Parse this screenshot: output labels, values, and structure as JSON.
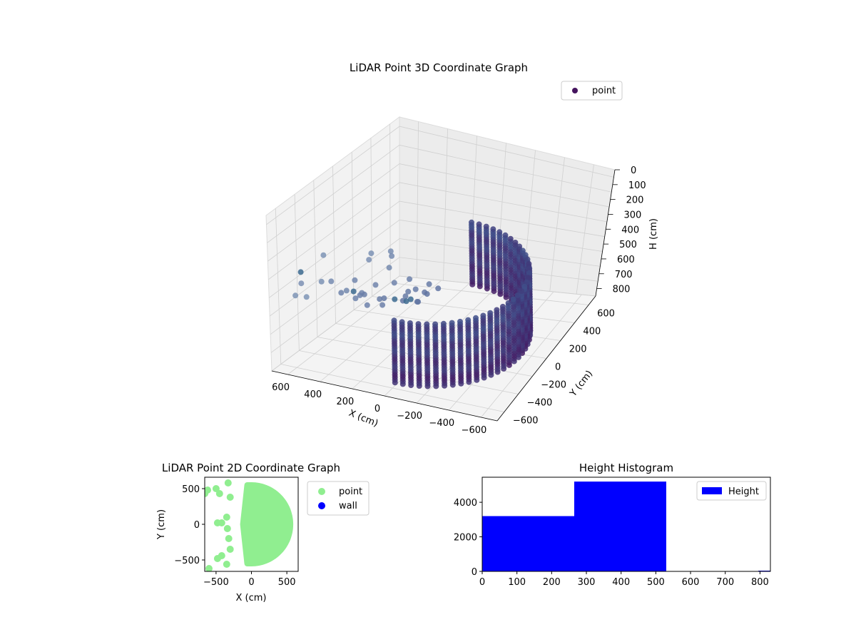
{
  "colors": {
    "point3d_dark": "#45145e",
    "point3d_mid": "#3f4f8a",
    "point3d_light": "#9bb3c9",
    "point2d": "#90ee90",
    "wall": "#0000ff",
    "hist": "#0000ff",
    "pane": "#f2f2f2",
    "grid": "#d0d0d0"
  },
  "chart_data": [
    {
      "type": "scatter",
      "projection": "3d",
      "title": "LiDAR Point 3D Coordinate Graph",
      "xlabel": "X (cm)",
      "ylabel": "Y (cm)",
      "zlabel": "H (cm)",
      "xlim": [
        -700,
        700
      ],
      "ylim": [
        -700,
        700
      ],
      "zlim": [
        0,
        850
      ],
      "z_inverted": true,
      "xticks": [
        "−600",
        "−400",
        "−200",
        "0",
        "200",
        "400",
        "600"
      ],
      "yticks": [
        "−600",
        "−400",
        "−200",
        "0",
        "200",
        "400",
        "600"
      ],
      "zticks": [
        "0",
        "100",
        "200",
        "300",
        "400",
        "500",
        "600",
        "700",
        "800"
      ],
      "legend": {
        "entries": [
          "point"
        ],
        "placement": "top-right"
      },
      "grid": true,
      "series": [
        {
          "name": "point",
          "shape": "half-cylinder wall",
          "radius": 550,
          "angle_range_deg": [
            -90,
            90
          ],
          "height_range": [
            0,
            530
          ],
          "scattered_points": [
            [
              -650,
              600,
              30
            ],
            [
              -620,
              500,
              60
            ],
            [
              -550,
              650,
              40
            ],
            [
              -500,
              550,
              90
            ],
            [
              -450,
              400,
              120
            ],
            [
              -700,
              -200,
              250
            ],
            [
              -680,
              -400,
              420
            ],
            [
              -620,
              -450,
              580
            ],
            [
              -600,
              -500,
              720
            ],
            [
              -650,
              -100,
              320
            ],
            [
              -680,
              0,
              460
            ],
            [
              -450,
              -200,
              380
            ],
            [
              -400,
              -100,
              300
            ],
            [
              -380,
              50,
              260
            ],
            [
              -350,
              -300,
              420
            ],
            [
              -300,
              -250,
              340
            ],
            [
              -250,
              -150,
              280
            ],
            [
              -200,
              100,
              220
            ],
            [
              -150,
              -50,
              310
            ],
            [
              -100,
              0,
              240
            ],
            [
              -300,
              -350,
              500
            ],
            [
              -250,
              -400,
              560
            ],
            [
              -200,
              -300,
              460
            ],
            [
              -150,
              -350,
              520
            ],
            [
              -100,
              -200,
              400
            ],
            [
              -50,
              -100,
              330
            ],
            [
              -350,
              -500,
              620
            ],
            [
              -250,
              -550,
              700
            ],
            [
              50,
              -650,
              800
            ],
            [
              100,
              -600,
              760
            ],
            [
              150,
              -650,
              830
            ],
            [
              -500,
              -300,
              520
            ],
            [
              -420,
              -150,
              440
            ],
            [
              -330,
              200,
              180
            ],
            [
              -280,
              300,
              150
            ],
            [
              -220,
              250,
              120
            ],
            [
              -180,
              350,
              100
            ],
            [
              -120,
              150,
              200
            ],
            [
              -80,
              250,
              170
            ],
            [
              -60,
              50,
              280
            ]
          ]
        }
      ]
    },
    {
      "type": "scatter",
      "title": "LiDAR Point 2D Coordinate Graph",
      "xlabel": "X (cm)",
      "ylabel": "Y (cm)",
      "xlim": [
        -660,
        660
      ],
      "ylim": [
        -660,
        660
      ],
      "xticks": [
        -500,
        0,
        500
      ],
      "yticks": [
        -500,
        0,
        500
      ],
      "legend": {
        "entries": [
          "point",
          "wall"
        ],
        "placement": "right-outside"
      },
      "series": [
        {
          "name": "point",
          "shape": "filled half-disc",
          "radius": 550,
          "angle_range_deg": [
            -90,
            90
          ],
          "scattered_points": [
            [
              -620,
              480
            ],
            [
              -500,
              500
            ],
            [
              -450,
              430
            ],
            [
              -480,
              20
            ],
            [
              -420,
              20
            ],
            [
              -480,
              -480
            ],
            [
              -420,
              -440
            ],
            [
              -350,
              -560
            ],
            [
              -600,
              -620
            ],
            [
              -330,
              580
            ],
            [
              -300,
              380
            ],
            [
              -320,
              -200
            ],
            [
              -300,
              -350
            ],
            [
              -350,
              100
            ],
            [
              -340,
              -60
            ],
            [
              -660,
              430
            ]
          ]
        },
        {
          "name": "wall",
          "points": []
        }
      ]
    },
    {
      "type": "bar",
      "subtype": "histogram",
      "title": "Height Histogram",
      "xlabel": "",
      "ylabel": "",
      "xlim": [
        0,
        830
      ],
      "ylim": [
        0,
        5450
      ],
      "xticks": [
        0,
        100,
        200,
        300,
        400,
        500,
        600,
        700,
        800
      ],
      "yticks": [
        0,
        2000,
        4000
      ],
      "legend": {
        "entries": [
          "Height"
        ],
        "placement": "top-right"
      },
      "bins": [
        {
          "start": 0,
          "end": 265,
          "count": 3200
        },
        {
          "start": 265,
          "end": 530,
          "count": 5200
        },
        {
          "start": 530,
          "end": 795,
          "count": 15
        },
        {
          "start": 795,
          "end": 830,
          "count": 40
        }
      ]
    }
  ]
}
